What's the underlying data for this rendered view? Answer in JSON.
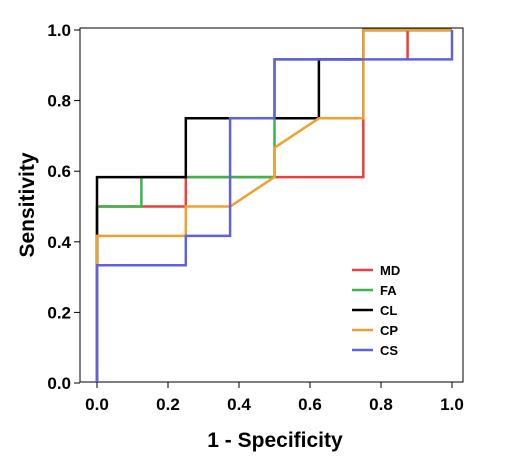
{
  "chart_data": {
    "type": "line",
    "xlabel": "1 - Specificity",
    "ylabel": "Sensitivity",
    "xlim": [
      0,
      1
    ],
    "ylim": [
      0,
      1
    ],
    "x_ticks": [
      "0.0",
      "0.2",
      "0.4",
      "0.6",
      "0.8",
      "1.0"
    ],
    "y_ticks": [
      "0.0",
      "0.2",
      "0.4",
      "0.6",
      "0.8",
      "1.0"
    ],
    "grid": false,
    "legend_position": "bottom-right",
    "series": [
      {
        "name": "MD",
        "color": "#e8413c",
        "points": [
          [
            0,
            0
          ],
          [
            0,
            0.5
          ],
          [
            0.25,
            0.5
          ],
          [
            0.25,
            0.5833
          ],
          [
            0.75,
            0.5833
          ],
          [
            0.75,
            1
          ],
          [
            0.875,
            1
          ],
          [
            0.875,
            0.9167
          ],
          [
            0.875,
            1
          ],
          [
            1,
            1
          ]
        ]
      },
      {
        "name": "FA",
        "color": "#3cb44b",
        "points": [
          [
            0,
            0
          ],
          [
            0,
            0.5
          ],
          [
            0.125,
            0.5
          ],
          [
            0.125,
            0.5833
          ],
          [
            0.5,
            0.5833
          ],
          [
            0.5,
            0.75
          ],
          [
            0.5,
            0.9167
          ],
          [
            0.75,
            0.9167
          ],
          [
            0.75,
            1
          ],
          [
            1,
            1
          ]
        ]
      },
      {
        "name": "CL",
        "color": "#000000",
        "points": [
          [
            0,
            0
          ],
          [
            0,
            0.5833
          ],
          [
            0.25,
            0.5833
          ],
          [
            0.25,
            0.75
          ],
          [
            0.625,
            0.75
          ],
          [
            0.625,
            0.9167
          ],
          [
            0.75,
            0.9167
          ],
          [
            0.75,
            1
          ],
          [
            1,
            1
          ]
        ]
      },
      {
        "name": "CP",
        "color": "#f0a030",
        "points": [
          [
            0,
            0
          ],
          [
            0,
            0.4167
          ],
          [
            0.25,
            0.4167
          ],
          [
            0.25,
            0.5
          ],
          [
            0.375,
            0.5
          ],
          [
            0.5,
            0.5833
          ],
          [
            0.5,
            0.6667
          ],
          [
            0.625,
            0.75
          ],
          [
            0.75,
            0.75
          ],
          [
            0.75,
            1
          ],
          [
            1,
            1
          ]
        ]
      },
      {
        "name": "CS",
        "color": "#6060e0",
        "points": [
          [
            0,
            0
          ],
          [
            0,
            0.3333
          ],
          [
            0.25,
            0.3333
          ],
          [
            0.25,
            0.4167
          ],
          [
            0.375,
            0.4167
          ],
          [
            0.375,
            0.75
          ],
          [
            0.5,
            0.75
          ],
          [
            0.5,
            0.9167
          ],
          [
            1,
            0.9167
          ],
          [
            1,
            1
          ]
        ]
      }
    ]
  }
}
